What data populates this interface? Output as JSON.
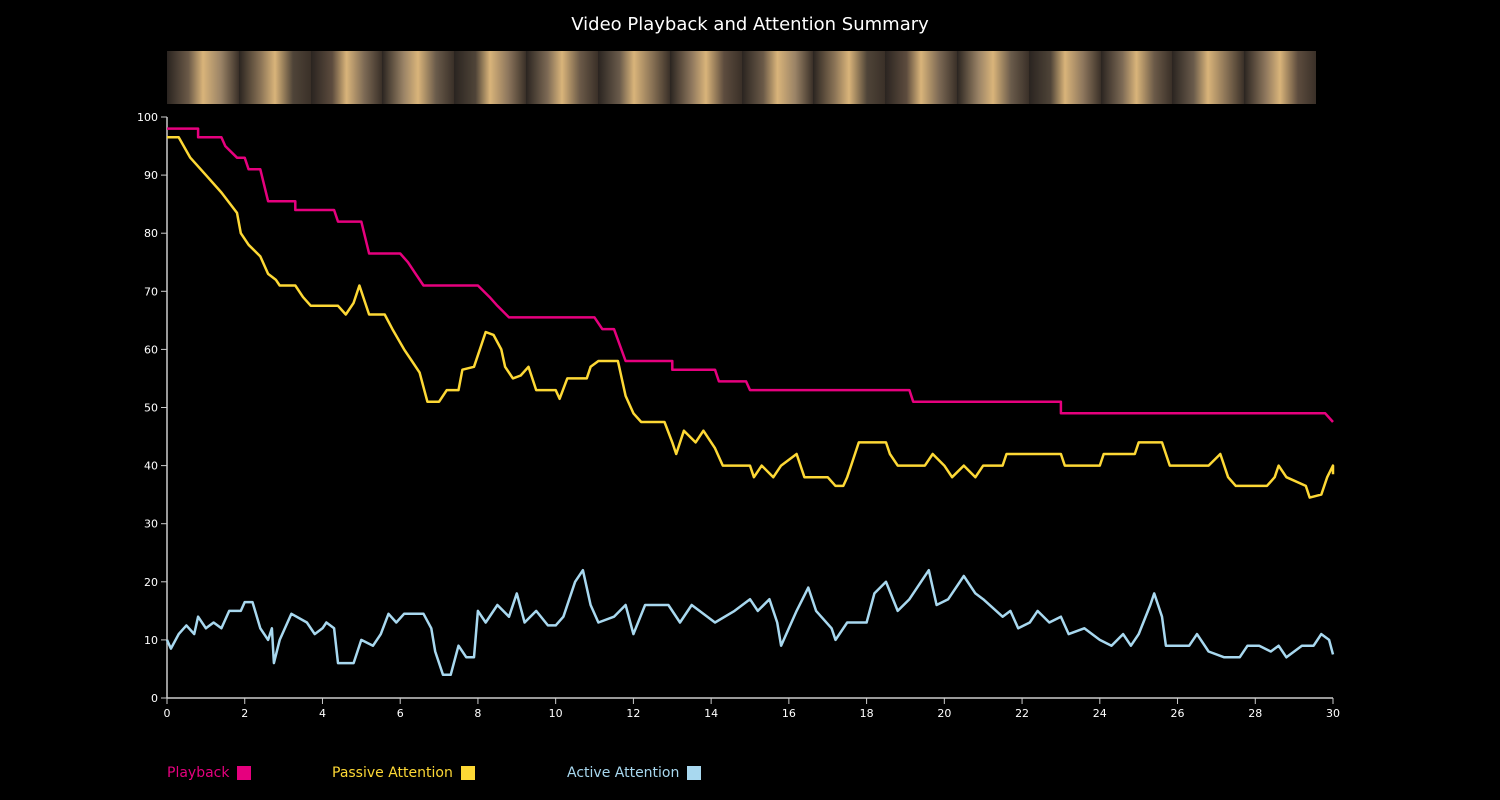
{
  "chart_data": {
    "type": "line",
    "title": "Video Playback and Attention Summary",
    "xlabel": "",
    "ylabel": "",
    "xlim": [
      0,
      30
    ],
    "ylim": [
      0,
      100
    ],
    "xticks": [
      0,
      2,
      4,
      6,
      8,
      10,
      12,
      14,
      16,
      18,
      20,
      22,
      24,
      26,
      28,
      30
    ],
    "yticks": [
      0,
      10,
      20,
      30,
      40,
      50,
      60,
      70,
      80,
      90,
      100
    ],
    "grid": false,
    "legend_placement": "bottom-left",
    "thumbnail_strip": true,
    "series": [
      {
        "name": "Playback",
        "color": "#e6007e",
        "step": true,
        "points": [
          [
            0,
            98
          ],
          [
            0.8,
            98
          ],
          [
            0.8,
            96.5
          ],
          [
            1.4,
            96.5
          ],
          [
            1.5,
            95
          ],
          [
            1.8,
            93
          ],
          [
            2.0,
            93
          ],
          [
            2.1,
            91
          ],
          [
            2.4,
            91
          ],
          [
            2.6,
            85.5
          ],
          [
            3.3,
            85.5
          ],
          [
            3.3,
            84
          ],
          [
            4.3,
            84
          ],
          [
            4.4,
            82
          ],
          [
            5.0,
            82
          ],
          [
            5.2,
            76.5
          ],
          [
            6.0,
            76.5
          ],
          [
            6.2,
            75
          ],
          [
            6.4,
            73
          ],
          [
            6.6,
            71
          ],
          [
            8.0,
            71
          ],
          [
            8.3,
            69
          ],
          [
            8.5,
            67.5
          ],
          [
            8.8,
            65.5
          ],
          [
            11.0,
            65.5
          ],
          [
            11.2,
            63.5
          ],
          [
            11.5,
            63.5
          ],
          [
            11.8,
            58
          ],
          [
            13.0,
            58
          ],
          [
            13.0,
            56.5
          ],
          [
            14.1,
            56.5
          ],
          [
            14.2,
            54.5
          ],
          [
            14.9,
            54.5
          ],
          [
            15.0,
            53
          ],
          [
            19.1,
            53
          ],
          [
            19.2,
            51
          ],
          [
            23.0,
            51
          ],
          [
            23.0,
            49
          ],
          [
            29.8,
            49
          ],
          [
            30,
            47.5
          ]
        ]
      },
      {
        "name": "Passive Attention",
        "color": "#fdd835",
        "points": [
          [
            0,
            96.5
          ],
          [
            0.3,
            96.5
          ],
          [
            0.6,
            93
          ],
          [
            1,
            90
          ],
          [
            1.4,
            87
          ],
          [
            1.8,
            83.5
          ],
          [
            1.9,
            80
          ],
          [
            2.1,
            78
          ],
          [
            2.4,
            76
          ],
          [
            2.6,
            73
          ],
          [
            2.7,
            72.5
          ],
          [
            2.8,
            72
          ],
          [
            2.9,
            71
          ],
          [
            3.3,
            71
          ],
          [
            3.5,
            69
          ],
          [
            3.7,
            67.5
          ],
          [
            4.4,
            67.5
          ],
          [
            4.6,
            66
          ],
          [
            4.8,
            68
          ],
          [
            4.95,
            71
          ],
          [
            5.1,
            68
          ],
          [
            5.2,
            66
          ],
          [
            5.6,
            66
          ],
          [
            5.8,
            63.5
          ],
          [
            6.1,
            60
          ],
          [
            6.3,
            58
          ],
          [
            6.5,
            56
          ],
          [
            6.7,
            51
          ],
          [
            7.0,
            51
          ],
          [
            7.2,
            53
          ],
          [
            7.5,
            53
          ],
          [
            7.6,
            56.5
          ],
          [
            7.9,
            57
          ],
          [
            8.1,
            61
          ],
          [
            8.2,
            63
          ],
          [
            8.4,
            62.5
          ],
          [
            8.6,
            60
          ],
          [
            8.7,
            57
          ],
          [
            8.9,
            55
          ],
          [
            9.1,
            55.5
          ],
          [
            9.3,
            57
          ],
          [
            9.5,
            53
          ],
          [
            10.0,
            53
          ],
          [
            10.1,
            51.5
          ],
          [
            10.3,
            55
          ],
          [
            10.8,
            55
          ],
          [
            10.9,
            57
          ],
          [
            11.1,
            58
          ],
          [
            11.6,
            58
          ],
          [
            11.8,
            52
          ],
          [
            12.0,
            49
          ],
          [
            12.2,
            47.5
          ],
          [
            12.8,
            47.5
          ],
          [
            13.0,
            44
          ],
          [
            13.1,
            42
          ],
          [
            13.3,
            46
          ],
          [
            13.6,
            44
          ],
          [
            13.8,
            46
          ],
          [
            14.1,
            43
          ],
          [
            14.3,
            40
          ],
          [
            15.0,
            40
          ],
          [
            15.1,
            38
          ],
          [
            15.3,
            40
          ],
          [
            15.6,
            38
          ],
          [
            15.8,
            40
          ],
          [
            16.2,
            42
          ],
          [
            16.4,
            38
          ],
          [
            17.0,
            38
          ],
          [
            17.2,
            36.5
          ],
          [
            17.4,
            36.5
          ],
          [
            17.5,
            38
          ],
          [
            17.6,
            40
          ],
          [
            17.8,
            44
          ],
          [
            18.5,
            44
          ],
          [
            18.6,
            42
          ],
          [
            18.8,
            40
          ],
          [
            19.5,
            40
          ],
          [
            19.7,
            42
          ],
          [
            20.0,
            40
          ],
          [
            20.2,
            38
          ],
          [
            20.5,
            40
          ],
          [
            20.8,
            38
          ],
          [
            21.0,
            40
          ],
          [
            21.5,
            40
          ],
          [
            21.6,
            42
          ],
          [
            23.0,
            42
          ],
          [
            23.1,
            40
          ],
          [
            24.0,
            40
          ],
          [
            24.1,
            42
          ],
          [
            24.9,
            42
          ],
          [
            25.0,
            44
          ],
          [
            25.6,
            44
          ],
          [
            25.8,
            40
          ],
          [
            26.8,
            40
          ],
          [
            27.1,
            42
          ],
          [
            27.3,
            38
          ],
          [
            27.5,
            36.5
          ],
          [
            28.3,
            36.5
          ],
          [
            28.5,
            38
          ],
          [
            28.6,
            40
          ],
          [
            28.8,
            38
          ],
          [
            29.3,
            36.5
          ],
          [
            29.4,
            34.5
          ],
          [
            29.7,
            35
          ],
          [
            29.85,
            38
          ],
          [
            30,
            40
          ],
          [
            30,
            38.5
          ]
        ]
      },
      {
        "name": "Active Attention",
        "color": "#a8d8ef",
        "points": [
          [
            0,
            10
          ],
          [
            0.1,
            8.5
          ],
          [
            0.3,
            11
          ],
          [
            0.5,
            12.5
          ],
          [
            0.7,
            11
          ],
          [
            0.8,
            14
          ],
          [
            1.0,
            12
          ],
          [
            1.2,
            13
          ],
          [
            1.4,
            12
          ],
          [
            1.6,
            15
          ],
          [
            1.9,
            15
          ],
          [
            2.0,
            16.5
          ],
          [
            2.2,
            16.5
          ],
          [
            2.4,
            12
          ],
          [
            2.6,
            10
          ],
          [
            2.7,
            12
          ],
          [
            2.75,
            6
          ],
          [
            2.9,
            10
          ],
          [
            3.2,
            14.5
          ],
          [
            3.6,
            13
          ],
          [
            3.8,
            11
          ],
          [
            4.0,
            12
          ],
          [
            4.1,
            13
          ],
          [
            4.3,
            12
          ],
          [
            4.4,
            6
          ],
          [
            4.8,
            6
          ],
          [
            5.0,
            10
          ],
          [
            5.3,
            9
          ],
          [
            5.5,
            11
          ],
          [
            5.7,
            14.5
          ],
          [
            5.9,
            13
          ],
          [
            6.1,
            14.5
          ],
          [
            6.6,
            14.5
          ],
          [
            6.8,
            12
          ],
          [
            6.9,
            8
          ],
          [
            7.1,
            4
          ],
          [
            7.3,
            4
          ],
          [
            7.5,
            9
          ],
          [
            7.7,
            7
          ],
          [
            7.9,
            7
          ],
          [
            8.0,
            15
          ],
          [
            8.2,
            13
          ],
          [
            8.5,
            16
          ],
          [
            8.8,
            14
          ],
          [
            9.0,
            18
          ],
          [
            9.2,
            13
          ],
          [
            9.5,
            15
          ],
          [
            9.8,
            12.5
          ],
          [
            10.0,
            12.5
          ],
          [
            10.2,
            14
          ],
          [
            10.5,
            20
          ],
          [
            10.7,
            22
          ],
          [
            10.9,
            16
          ],
          [
            11.1,
            13
          ],
          [
            11.5,
            14
          ],
          [
            11.8,
            16
          ],
          [
            12.0,
            11
          ],
          [
            12.3,
            16
          ],
          [
            12.9,
            16
          ],
          [
            13.2,
            13
          ],
          [
            13.5,
            16
          ],
          [
            14.1,
            13
          ],
          [
            14.6,
            15
          ],
          [
            15.0,
            17
          ],
          [
            15.2,
            15
          ],
          [
            15.5,
            17
          ],
          [
            15.7,
            13
          ],
          [
            15.8,
            9
          ],
          [
            16.2,
            15
          ],
          [
            16.5,
            19
          ],
          [
            16.7,
            15
          ],
          [
            17.1,
            12
          ],
          [
            17.2,
            10
          ],
          [
            17.5,
            13
          ],
          [
            18.0,
            13
          ],
          [
            18.2,
            18
          ],
          [
            18.5,
            20
          ],
          [
            18.8,
            15
          ],
          [
            19.1,
            17
          ],
          [
            19.4,
            20
          ],
          [
            19.6,
            22
          ],
          [
            19.8,
            16
          ],
          [
            20.1,
            17
          ],
          [
            20.5,
            21
          ],
          [
            20.8,
            18
          ],
          [
            21.0,
            17
          ],
          [
            21.5,
            14
          ],
          [
            21.7,
            15
          ],
          [
            21.9,
            12
          ],
          [
            22.2,
            13
          ],
          [
            22.4,
            15
          ],
          [
            22.7,
            13
          ],
          [
            23.0,
            14
          ],
          [
            23.2,
            11
          ],
          [
            23.6,
            12
          ],
          [
            24.0,
            10
          ],
          [
            24.3,
            9
          ],
          [
            24.6,
            11
          ],
          [
            24.8,
            9
          ],
          [
            25.0,
            11
          ],
          [
            25.3,
            16
          ],
          [
            25.4,
            18
          ],
          [
            25.6,
            14
          ],
          [
            25.7,
            9
          ],
          [
            26.3,
            9
          ],
          [
            26.5,
            11
          ],
          [
            26.8,
            8
          ],
          [
            27.2,
            7
          ],
          [
            27.6,
            7
          ],
          [
            27.8,
            9
          ],
          [
            28.1,
            9
          ],
          [
            28.4,
            8
          ],
          [
            28.6,
            9
          ],
          [
            28.8,
            7
          ],
          [
            29.2,
            9
          ],
          [
            29.5,
            9
          ],
          [
            29.7,
            11
          ],
          [
            29.9,
            10
          ],
          [
            30,
            7.5
          ]
        ]
      }
    ]
  }
}
